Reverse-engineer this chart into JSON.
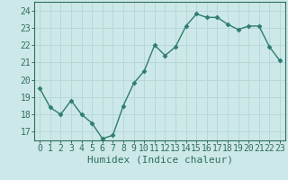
{
  "x": [
    0,
    1,
    2,
    3,
    4,
    5,
    6,
    7,
    8,
    9,
    10,
    11,
    12,
    13,
    14,
    15,
    16,
    17,
    18,
    19,
    20,
    21,
    22,
    23
  ],
  "y": [
    19.5,
    18.4,
    18.0,
    18.8,
    18.0,
    17.5,
    16.6,
    16.8,
    18.5,
    19.8,
    20.5,
    22.0,
    21.4,
    21.9,
    23.1,
    23.8,
    23.6,
    23.6,
    23.2,
    22.9,
    23.1,
    23.1,
    21.9,
    21.1
  ],
  "line_color": "#2e7d6e",
  "marker": "D",
  "marker_size": 2.5,
  "line_width": 1.0,
  "bg_color": "#cde8e8",
  "grid_color": "#b8d8d8",
  "xlabel": "Humidex (Indice chaleur)",
  "ylabel_ticks": [
    17,
    18,
    19,
    20,
    21,
    22,
    23,
    24
  ],
  "xlim": [
    -0.5,
    23.5
  ],
  "ylim": [
    16.5,
    24.5
  ],
  "tick_label_color": "#2e6e60",
  "xlabel_color": "#2e6e60",
  "xlabel_fontsize": 8,
  "tick_fontsize": 7,
  "axis_color": "#2e6e60"
}
